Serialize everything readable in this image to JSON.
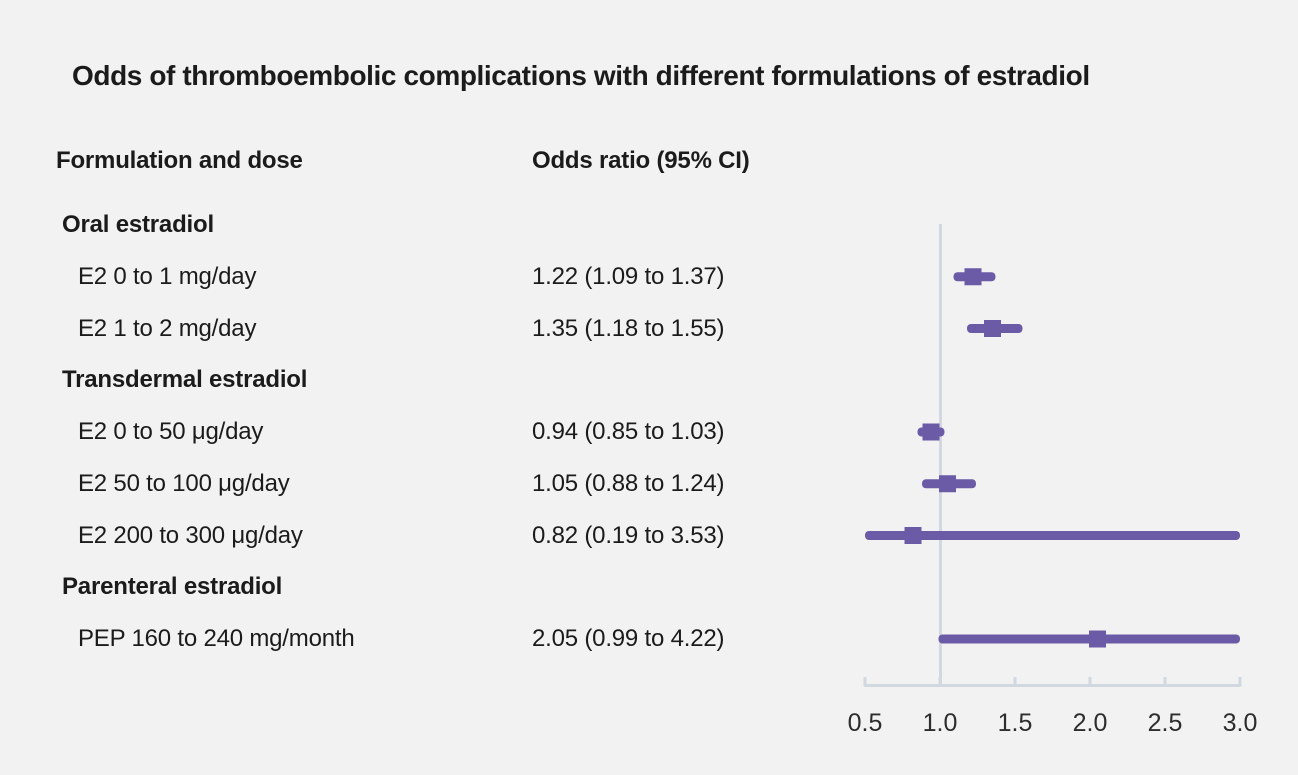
{
  "title": "Odds of thromboembolic complications with different formulations of estradiol",
  "column_headers": {
    "formulation": "Formulation and dose",
    "odds_ratio": "Odds ratio (95% CI)"
  },
  "chart_data": {
    "type": "scatter",
    "subtype": "forest-plot",
    "title": "Odds of thromboembolic complications with different formulations of estradiol",
    "xlabel": "",
    "ylabel": "",
    "x_range": [
      0.5,
      3.0
    ],
    "x_ticks": [
      "0.5",
      "1.0",
      "1.5",
      "2.0",
      "2.5",
      "3.0"
    ],
    "x_tick_values": [
      0.5,
      1.0,
      1.5,
      2.0,
      2.5,
      3.0
    ],
    "reference_line": 1.0,
    "grid": false,
    "legend": "none",
    "rows": [
      {
        "kind": "section",
        "label": "Oral estradiol"
      },
      {
        "kind": "item",
        "label": "E2 0 to 1 mg/day",
        "value_text": "1.22 (1.09 to 1.37)",
        "or": 1.22,
        "ci_low": 1.09,
        "ci_high": 1.37
      },
      {
        "kind": "item",
        "label": "E2 1 to 2 mg/day",
        "value_text": "1.35 (1.18 to 1.55)",
        "or": 1.35,
        "ci_low": 1.18,
        "ci_high": 1.55
      },
      {
        "kind": "section",
        "label": "Transdermal estradiol"
      },
      {
        "kind": "item",
        "label": "E2 0 to 50 μg/day",
        "value_text": "0.94 (0.85 to 1.03)",
        "or": 0.94,
        "ci_low": 0.85,
        "ci_high": 1.03
      },
      {
        "kind": "item",
        "label": "E2 50 to 100 μg/day",
        "value_text": "1.05 (0.88 to 1.24)",
        "or": 1.05,
        "ci_low": 0.88,
        "ci_high": 1.24
      },
      {
        "kind": "item",
        "label": "E2 200 to 300 μg/day",
        "value_text": "0.82 (0.19 to 3.53)",
        "or": 0.82,
        "ci_low": 0.19,
        "ci_high": 3.53
      },
      {
        "kind": "section",
        "label": "Parenteral estradiol"
      },
      {
        "kind": "item",
        "label": "PEP 160 to 240 mg/month",
        "value_text": "2.05 (0.99 to 4.22)",
        "or": 2.05,
        "ci_low": 0.99,
        "ci_high": 4.22
      }
    ],
    "colors": {
      "marker": "#6b5aa5",
      "axis": "#d2d8df",
      "background": "#f2f2f2",
      "text": "#1b1b1b",
      "tick_text": "#2d2d2d"
    }
  }
}
